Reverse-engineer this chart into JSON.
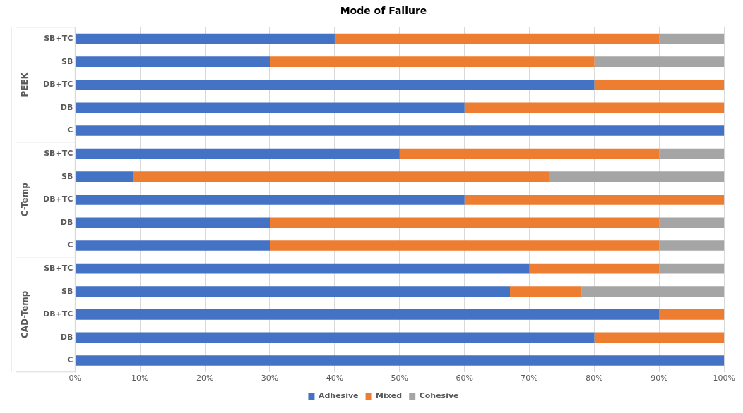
{
  "chart_data": {
    "type": "bar",
    "orientation": "horizontal",
    "stacked": true,
    "title": "Mode of Failure",
    "categories": [
      "SB+TC",
      "SB",
      "DB+TC",
      "DB",
      "C",
      "SB+TC",
      "SB",
      "DB+TC",
      "DB",
      "C",
      "SB+TC",
      "SB",
      "DB+TC",
      "DB",
      "C"
    ],
    "annotations": [
      "PEEK",
      "C-Temp",
      "CAD-Temp"
    ],
    "series": [
      {
        "name": "Adhesive",
        "color": "#4472c4",
        "values": [
          40,
          30,
          80,
          60,
          100,
          50,
          9,
          60,
          30,
          30,
          70,
          67,
          90,
          80,
          100
        ]
      },
      {
        "name": "Mixed",
        "color": "#ed7d31",
        "values": [
          50,
          50,
          20,
          40,
          0,
          40,
          64,
          40,
          60,
          60,
          20,
          11,
          10,
          20,
          0
        ]
      },
      {
        "name": "Cohesive",
        "color": "#a5a5a5",
        "values": [
          10,
          20,
          0,
          0,
          0,
          10,
          27,
          0,
          10,
          10,
          10,
          22,
          0,
          0,
          0
        ]
      }
    ],
    "xlim": [
      0,
      100
    ],
    "xticks": [
      {
        "value": 0,
        "label": "0%"
      },
      {
        "value": 10,
        "label": "10%"
      },
      {
        "value": 20,
        "label": "20%"
      },
      {
        "value": 30,
        "label": "30%"
      },
      {
        "value": 40,
        "label": "40%"
      },
      {
        "value": 50,
        "label": "50%"
      },
      {
        "value": 60,
        "label": "60%"
      },
      {
        "value": 70,
        "label": "70%"
      },
      {
        "value": 80,
        "label": "80%"
      },
      {
        "value": 90,
        "label": "90%"
      },
      {
        "value": 100,
        "label": "100%"
      }
    ],
    "grid": "x",
    "legend": "bottom"
  }
}
